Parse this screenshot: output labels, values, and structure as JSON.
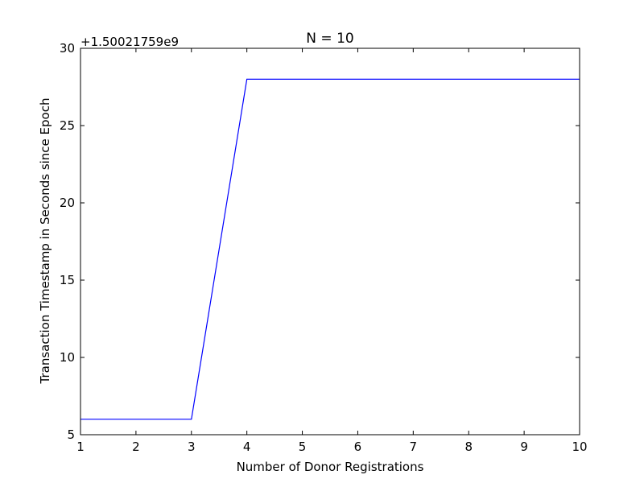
{
  "colors": {
    "line": "#0000ff",
    "axes": "#000000",
    "background": "#ffffff"
  },
  "chart_data": {
    "type": "line",
    "title": "N = 10",
    "xlabel": "Number of Donor Registrations",
    "ylabel": "Transaction Timestamp in Seconds since Epoch",
    "y_offset_label": "+1.50021759e9",
    "xlim": [
      1,
      10
    ],
    "ylim": [
      5,
      30
    ],
    "xticks": [
      1,
      2,
      3,
      4,
      5,
      6,
      7,
      8,
      9,
      10
    ],
    "yticks": [
      5,
      10,
      15,
      20,
      25,
      30
    ],
    "grid": false,
    "legend": "none",
    "series": [
      {
        "x": [
          1,
          2,
          3,
          4,
          5,
          6,
          7,
          8,
          9,
          10
        ],
        "y": [
          6,
          6,
          6,
          28,
          28,
          28,
          28,
          28,
          28,
          28
        ]
      }
    ]
  }
}
